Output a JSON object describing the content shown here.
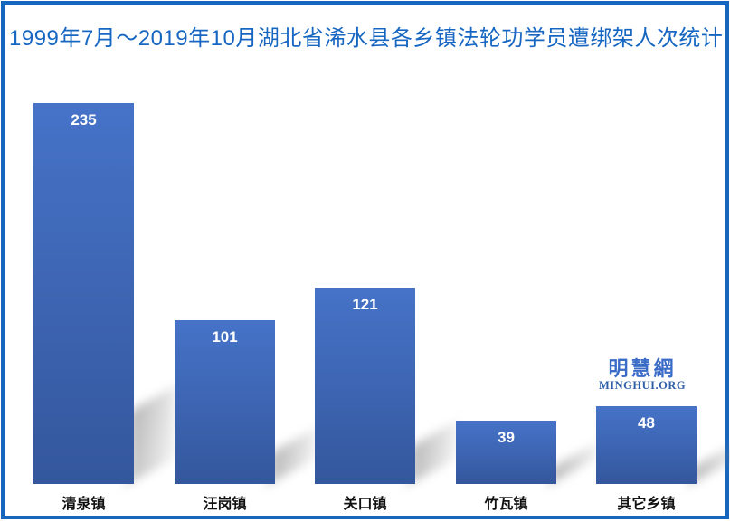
{
  "title": {
    "text": "1999年7月～2019年10月湖北省浠水县各乡镇法轮功学员遭绑架人次统计",
    "color": "#1767C2"
  },
  "frame": {
    "border_color": "#1766BE"
  },
  "watermark": {
    "cjk": "明慧網",
    "latin": "MINGHUI.ORG",
    "cjk_color": "#3A6BC7",
    "latin_color": "#2F5FA9"
  },
  "chart_data": {
    "type": "bar",
    "title": "1999年7月～2019年10月湖北省浠水县各乡镇法轮功学员遭绑架人次统计",
    "categories": [
      "清泉镇",
      "汪岗镇",
      "关口镇",
      "竹瓦镇",
      "其它乡镇"
    ],
    "values": [
      235,
      101,
      121,
      39,
      48
    ],
    "xlabel": "",
    "ylabel": "",
    "ylim": [
      0,
      250
    ],
    "grid": false,
    "legend": "none",
    "value_labels_shown": true,
    "bar_color_top": "#4673C8",
    "bar_color_bottom": "#34579D",
    "value_label_color": "#FFFFFF",
    "category_label_color": "#111111"
  }
}
